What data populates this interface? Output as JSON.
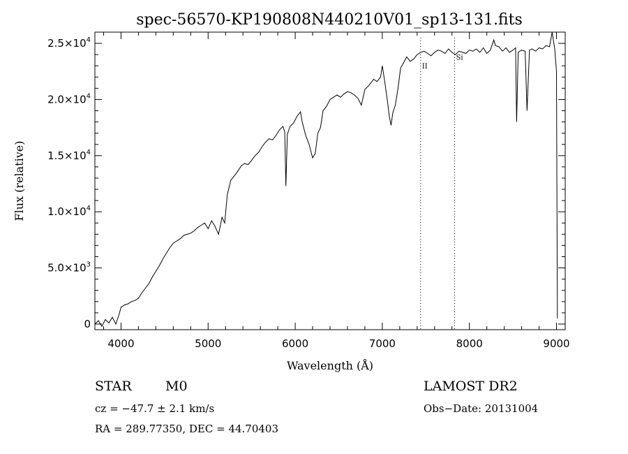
{
  "chart_data": {
    "type": "line",
    "title": "spec-56570-KP190808N440210V01_sp13-131.fits",
    "xlabel": "Wavelength (Å)",
    "ylabel": "Flux (relative)",
    "xlim": [
      3700,
      9100
    ],
    "ylim": [
      -500,
      26000
    ],
    "x_ticks": [
      4000,
      5000,
      6000,
      7000,
      8000,
      9000
    ],
    "x_tick_labels": [
      "4000",
      "5000",
      "6000",
      "7000",
      "8000",
      "9000"
    ],
    "y_ticks": [
      {
        "value": 0,
        "mantissa": "0",
        "exp": ""
      },
      {
        "value": 5000,
        "mantissa": "5.0×10",
        "exp": "3"
      },
      {
        "value": 10000,
        "mantissa": "1.0×10",
        "exp": "4"
      },
      {
        "value": 15000,
        "mantissa": "1.5×10",
        "exp": "4"
      },
      {
        "value": 20000,
        "mantissa": "2.0×10",
        "exp": "4"
      },
      {
        "value": 25000,
        "mantissa": "2.5×10",
        "exp": "4"
      }
    ],
    "annotations": [
      {
        "x": 7440,
        "label": "II",
        "y": 23000
      },
      {
        "x": 7830,
        "label": "Si",
        "y": 23800
      }
    ],
    "series": [
      {
        "name": "flux",
        "x": [
          3700,
          3740,
          3780,
          3820,
          3860,
          3900,
          3940,
          3980,
          4000,
          4040,
          4080,
          4120,
          4160,
          4200,
          4240,
          4280,
          4320,
          4360,
          4400,
          4440,
          4480,
          4520,
          4560,
          4600,
          4640,
          4680,
          4720,
          4760,
          4800,
          4840,
          4880,
          4920,
          4960,
          5000,
          5040,
          5080,
          5120,
          5160,
          5190,
          5220,
          5260,
          5300,
          5340,
          5380,
          5420,
          5460,
          5500,
          5540,
          5580,
          5620,
          5660,
          5700,
          5740,
          5780,
          5820,
          5860,
          5880,
          5893,
          5910,
          5940,
          5980,
          6020,
          6060,
          6080,
          6120,
          6160,
          6200,
          6230,
          6260,
          6290,
          6320,
          6360,
          6400,
          6440,
          6480,
          6520,
          6560,
          6600,
          6640,
          6680,
          6720,
          6760,
          6800,
          6840,
          6870,
          6900,
          6940,
          6980,
          7000,
          7030,
          7060,
          7080,
          7100,
          7120,
          7150,
          7180,
          7210,
          7240,
          7280,
          7320,
          7360,
          7400,
          7440,
          7480,
          7520,
          7560,
          7600,
          7640,
          7680,
          7720,
          7760,
          7800,
          7840,
          7880,
          7920,
          7960,
          8000,
          8040,
          8080,
          8120,
          8160,
          8200,
          8240,
          8280,
          8300,
          8340,
          8380,
          8420,
          8460,
          8500,
          8530,
          8542,
          8560,
          8600,
          8640,
          8662,
          8690,
          8720,
          8760,
          8800,
          8840,
          8880,
          8920,
          8950,
          8980,
          9000,
          9010
        ],
        "y": [
          0,
          300,
          -200,
          400,
          100,
          600,
          0,
          900,
          1500,
          1700,
          1800,
          2000,
          2100,
          2300,
          2800,
          3200,
          3600,
          4200,
          4700,
          5200,
          5800,
          6300,
          6800,
          7200,
          7400,
          7600,
          7900,
          8000,
          8100,
          8300,
          8600,
          8800,
          9000,
          8500,
          9200,
          8700,
          8000,
          9500,
          9000,
          11500,
          12800,
          13200,
          13600,
          14100,
          14300,
          14200,
          14600,
          15000,
          15300,
          15800,
          16200,
          16500,
          16400,
          16800,
          17300,
          17600,
          17100,
          12300,
          16900,
          17600,
          17900,
          18500,
          18900,
          18000,
          16800,
          16000,
          14800,
          15200,
          17000,
          17500,
          19000,
          19400,
          20000,
          20200,
          20400,
          20200,
          20500,
          20700,
          20600,
          20400,
          20100,
          19500,
          20900,
          21200,
          21500,
          21800,
          21600,
          22000,
          23000,
          21500,
          19800,
          18500,
          17700,
          18800,
          19500,
          21000,
          22800,
          23200,
          23800,
          23400,
          23600,
          24000,
          24200,
          24300,
          24100,
          23900,
          24200,
          24400,
          24300,
          24100,
          24500,
          24200,
          24000,
          24300,
          24200,
          24100,
          24400,
          24300,
          24500,
          24200,
          24600,
          24100,
          24400,
          25300,
          24800,
          24700,
          24300,
          24600,
          24200,
          24400,
          24600,
          18000,
          24200,
          24400,
          24300,
          19000,
          24400,
          24500,
          24300,
          24600,
          24500,
          24800,
          24700,
          26000,
          24500,
          22500,
          500
        ]
      }
    ]
  },
  "info": {
    "obj_class": "STAR",
    "subclass": "M0",
    "cz": "cz = −47.7 ± 2.1 km/s",
    "coords": "RA = 289.77350, DEC =  44.70403",
    "survey": "LAMOST DR2",
    "obs_date": "Obs−Date: 20131004"
  }
}
